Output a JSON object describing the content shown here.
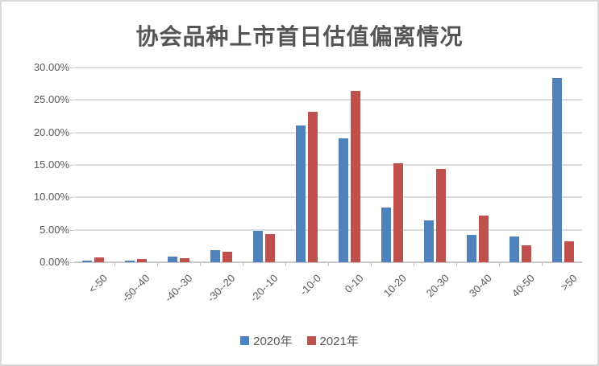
{
  "chart": {
    "background": "#FFFFFF",
    "border_color": "#D9D9D9"
  },
  "chart_data": {
    "type": "bar",
    "title": "协会品种上市首日估值偏离情况",
    "categories": [
      "<-50",
      "-50--40",
      "-40--30",
      "-30--20",
      "-20--10",
      "-10-0",
      "0-10",
      "10-20",
      "20-30",
      "30-40",
      "40-50",
      ">50"
    ],
    "series": [
      {
        "name": "2020年",
        "color": "#4F81BD",
        "values": [
          0.3,
          0.3,
          0.9,
          1.9,
          4.8,
          21.1,
          19.1,
          8.4,
          6.5,
          4.2,
          4.0,
          28.4
        ]
      },
      {
        "name": "2021年",
        "color": "#C0504D",
        "values": [
          0.8,
          0.5,
          0.6,
          1.6,
          4.4,
          23.2,
          26.4,
          15.3,
          14.4,
          7.2,
          2.6,
          3.2
        ]
      }
    ],
    "xlabel": "",
    "ylabel": "",
    "ylim": [
      0,
      30
    ],
    "y_tick_interval": 5,
    "y_tick_labels": [
      "0.00%",
      "5.00%",
      "10.00%",
      "15.00%",
      "20.00%",
      "25.00%",
      "30.00%"
    ],
    "grid": "horizontal",
    "gridline_color": "#DCDCDC",
    "axis_color": "#C9C9C9",
    "text_color": "#595959",
    "legend_position": "bottom"
  }
}
